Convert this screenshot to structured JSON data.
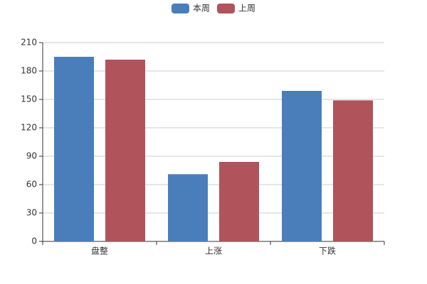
{
  "chart_data": {
    "type": "bar",
    "categories": [
      "盘整",
      "上涨",
      "下跌"
    ],
    "series": [
      {
        "name": "本周",
        "color": "#4a7ebb",
        "values": [
          195,
          71,
          159
        ]
      },
      {
        "name": "上周",
        "color": "#b0535a",
        "values": [
          192,
          84,
          149
        ]
      }
    ],
    "ylim": [
      0,
      210
    ],
    "yticks": [
      0,
      30,
      60,
      90,
      120,
      150,
      180,
      210
    ],
    "grid": true,
    "legend": "top"
  }
}
